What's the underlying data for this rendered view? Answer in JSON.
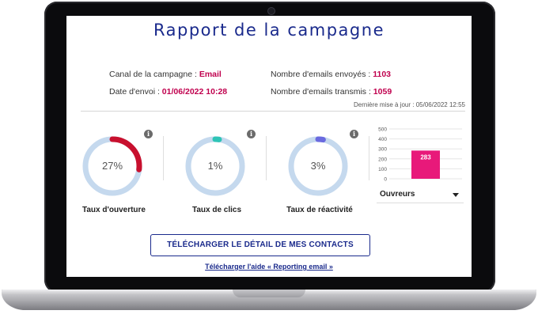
{
  "report": {
    "title": "Rapport de la campagne",
    "channel_label": "Canal de la campagne : ",
    "channel_value": "Email",
    "date_label": "Date d'envoi : ",
    "date_value": "01/06/2022 10:28",
    "sent_label": "Nombre d'emails envoyés : ",
    "sent_value": "1103",
    "delivered_label": "Nombre d'emails transmis : ",
    "delivered_value": "1059",
    "last_update": "Dernière mise à jour : 05/06/2022 12:55"
  },
  "kpis": [
    {
      "label": "Taux d'ouverture",
      "value_text": "27%",
      "fraction": 0.27,
      "color": "#c8102e"
    },
    {
      "label": "Taux de clics",
      "value_text": "1%",
      "fraction": 0.01,
      "color": "#2ec4b6"
    },
    {
      "label": "Taux de réactivité",
      "value_text": "3%",
      "fraction": 0.03,
      "color": "#6a6adf"
    }
  ],
  "colors": {
    "ring_track": "#c5d9ee",
    "bar": "#e8197a",
    "primary": "#1a2a8c",
    "accent": "#c0004e"
  },
  "chart_data": {
    "type": "bar",
    "categories": [
      ""
    ],
    "values": [
      283
    ],
    "yticks": [
      0,
      100,
      200,
      300,
      400,
      500
    ],
    "ylim": [
      0,
      500
    ],
    "data_labels": [
      "283"
    ],
    "grid": true
  },
  "select": {
    "value": "Ouvreurs"
  },
  "actions": {
    "download_contacts": "TÉLÉCHARGER LE DÉTAIL DE MES CONTACTS",
    "download_help": "Télécharger l'aide « Reporting email »"
  }
}
